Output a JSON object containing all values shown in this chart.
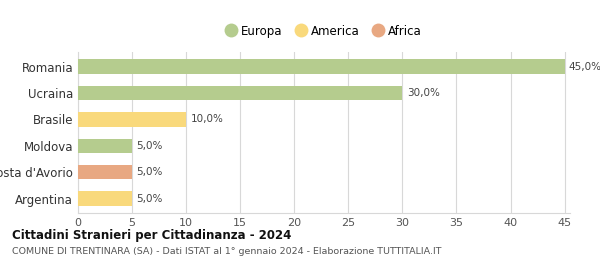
{
  "categories": [
    "Romania",
    "Ucraina",
    "Brasile",
    "Moldova",
    "Costa d'Avorio",
    "Argentina"
  ],
  "values": [
    45.0,
    30.0,
    10.0,
    5.0,
    5.0,
    5.0
  ],
  "colors": [
    "#b5cc8e",
    "#b5cc8e",
    "#f9d97c",
    "#b5cc8e",
    "#e8a882",
    "#f9d97c"
  ],
  "legend": [
    {
      "label": "Europa",
      "color": "#b5cc8e"
    },
    {
      "label": "America",
      "color": "#f9d97c"
    },
    {
      "label": "Africa",
      "color": "#e8a882"
    }
  ],
  "xlim": [
    0,
    45
  ],
  "xticks": [
    0,
    5,
    10,
    15,
    20,
    25,
    30,
    35,
    40,
    45
  ],
  "title": "Cittadini Stranieri per Cittadinanza - 2024",
  "subtitle": "COMUNE DI TRENTINARA (SA) - Dati ISTAT al 1° gennaio 2024 - Elaborazione TUTTITALIA.IT",
  "background_color": "#ffffff",
  "grid_color": "#d8d8d8",
  "bar_height": 0.55
}
